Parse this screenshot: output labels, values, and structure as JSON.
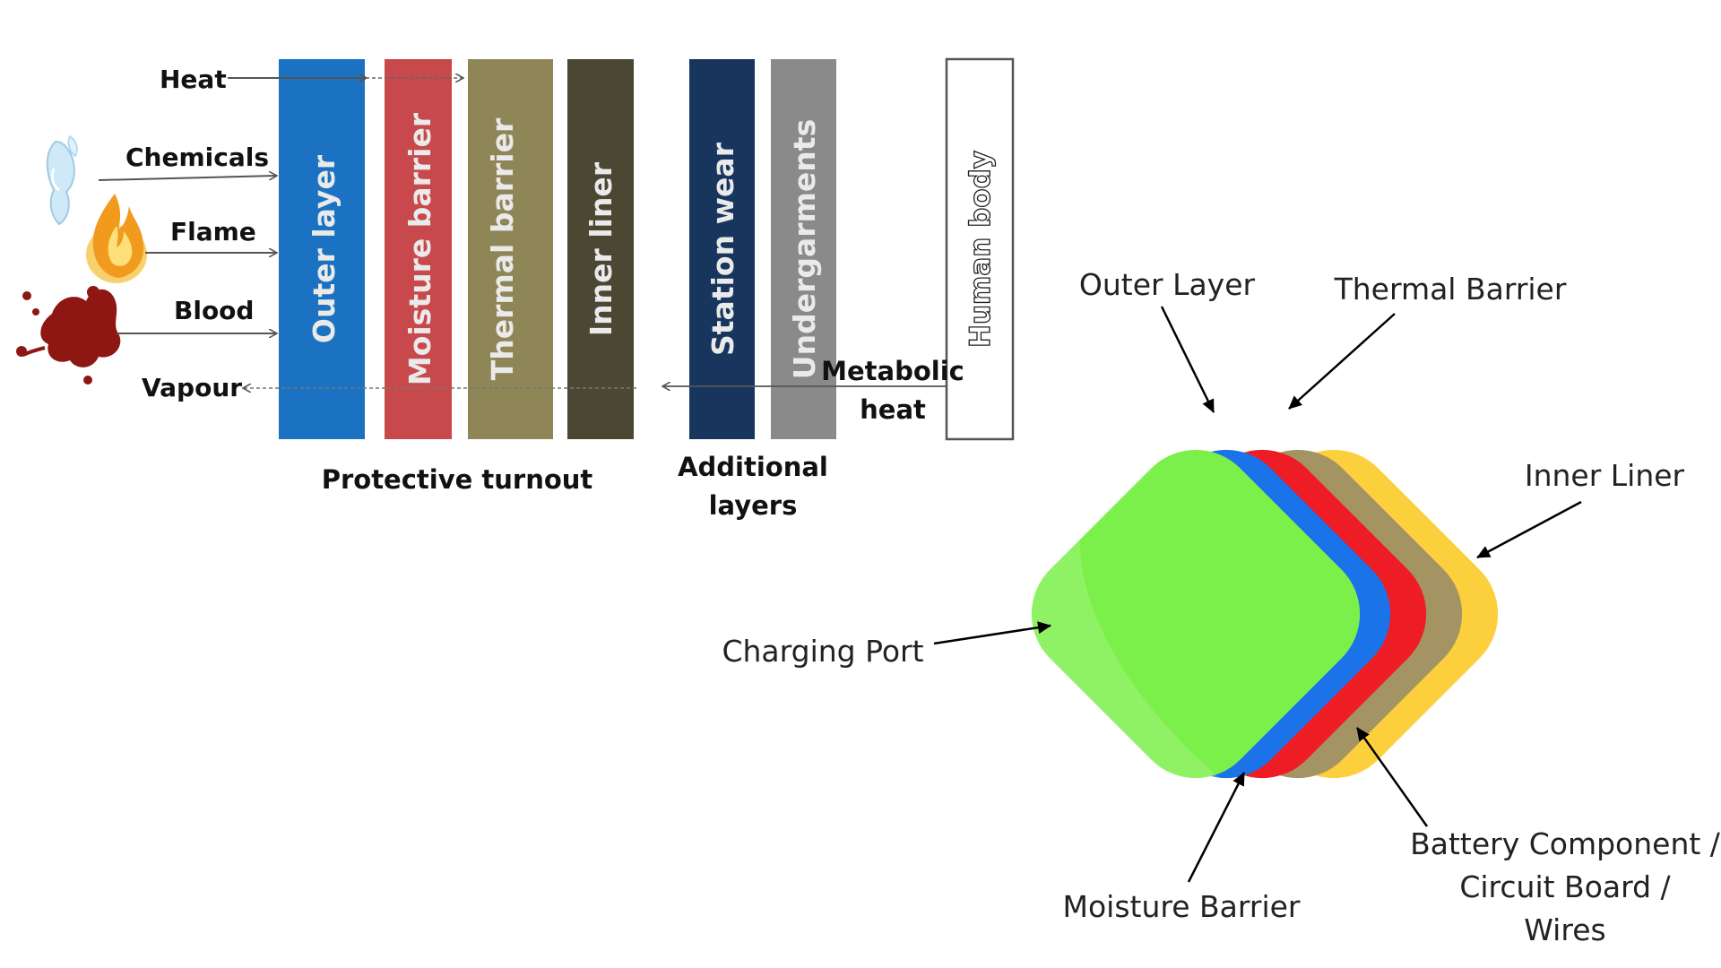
{
  "left_diagram": {
    "hazards": {
      "heat": "Heat",
      "chemicals": "Chemicals",
      "flame": "Flame",
      "blood": "Blood",
      "vapour": "Vapour"
    },
    "layers": {
      "outer": "Outer layer",
      "moisture": "Moisture barrier",
      "thermal": "Thermal barrier",
      "inner": "Inner liner",
      "station": "Station wear",
      "under": "Undergarments",
      "body": "Human body"
    },
    "metabolic_line1": "Metabolic",
    "metabolic_line2": "heat",
    "group_protective": "Protective turnout",
    "group_additional_line1": "Additional",
    "group_additional_line2": "layers",
    "colors": {
      "outer": "#1b72c2",
      "moisture": "#c7494b",
      "thermal": "#8f8657",
      "inner": "#4c4733",
      "station": "#18365d",
      "under": "#8a8a8a"
    }
  },
  "right_diagram": {
    "labels": {
      "outer_layer": "Outer Layer",
      "thermal_barrier": "Thermal Barrier",
      "inner_liner": "Inner Liner",
      "charging_port": "Charging Port",
      "moisture_barrier": "Moisture Barrier",
      "battery_line1": "Battery Component /",
      "battery_line2": "Circuit Board /",
      "battery_line3": "Wires"
    },
    "colors": {
      "charging_port": "#7cf04a",
      "outer_layer": "#1a73e8",
      "moisture_barrier": "#ee1c24",
      "thermal_barrier": "#a49463",
      "battery": "#fcd03c",
      "inner_liner": "#68665d"
    }
  }
}
